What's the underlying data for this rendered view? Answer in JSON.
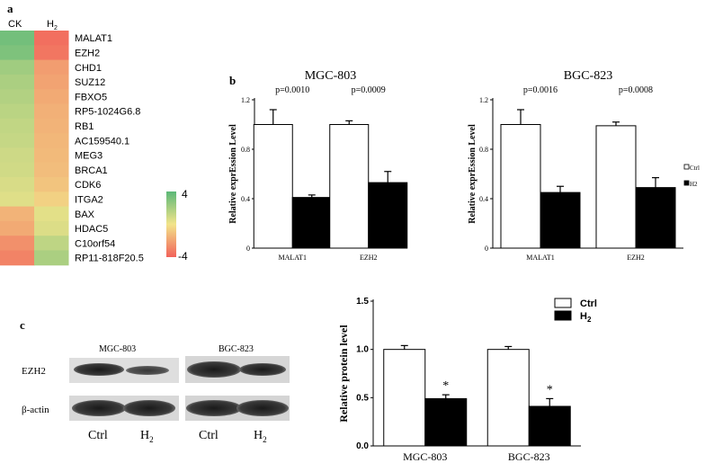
{
  "panels": {
    "a": "a",
    "b": "b",
    "c": "c"
  },
  "heatmap": {
    "col_labels": [
      "CK",
      "H"
    ],
    "col_label_sub": "2",
    "genes": [
      "MALAT1",
      "EZH2",
      "CHD1",
      "SUZ12",
      "FBXO5",
      "RP5-1024G6.8",
      "RB1",
      "AC159540.1",
      "MEG3",
      "BRCA1",
      "CDK6",
      "ITGA2",
      "BAX",
      "HDAC5",
      "C10orf54",
      "RP11-818F20.5"
    ],
    "values": [
      [
        3.4,
        -3.6
      ],
      [
        3.1,
        -3.4
      ],
      [
        2.2,
        -2.2
      ],
      [
        1.9,
        -2.0
      ],
      [
        1.7,
        -1.8
      ],
      [
        1.5,
        -1.6
      ],
      [
        1.3,
        -1.5
      ],
      [
        1.2,
        -1.4
      ],
      [
        1.0,
        -1.3
      ],
      [
        0.9,
        -1.2
      ],
      [
        0.7,
        -1.0
      ],
      [
        0.5,
        -0.6
      ],
      [
        -1.5,
        0.4
      ],
      [
        -1.8,
        0.6
      ],
      [
        -2.6,
        1.4
      ],
      [
        -3.0,
        1.9
      ]
    ],
    "legend_max": "4",
    "legend_min": "-4",
    "colors": {
      "high": "#5cb878",
      "mid": "#f2e48a",
      "low": "#f2625a"
    }
  },
  "chart_data": [
    {
      "type": "bar",
      "title": "MGC-803",
      "categories": [
        "MALAT1",
        "EZH2"
      ],
      "series": [
        {
          "name": "Ctrl",
          "values": [
            1.0,
            1.0
          ],
          "errors": [
            0.12,
            0.03
          ]
        },
        {
          "name": "H2",
          "values": [
            0.41,
            0.53
          ],
          "errors": [
            0.02,
            0.09
          ]
        }
      ],
      "pvalues": [
        "p=0.0010",
        "p=0.0009"
      ],
      "ylabel": "Relative exprEssion Level",
      "yticks": [
        "0",
        "0.4",
        "0.8",
        "1.2"
      ],
      "ylim": [
        0,
        1.2
      ]
    },
    {
      "type": "bar",
      "title": "BGC-823",
      "categories": [
        "MALAT1",
        "EZH2"
      ],
      "series": [
        {
          "name": "Ctrl",
          "values": [
            1.0,
            0.99
          ],
          "errors": [
            0.12,
            0.03
          ]
        },
        {
          "name": "H2",
          "values": [
            0.45,
            0.49
          ],
          "errors": [
            0.05,
            0.08
          ]
        }
      ],
      "pvalues": [
        "p=0.0016",
        "p=0.0008"
      ],
      "ylabel": "Relative exprEssion Level",
      "yticks": [
        "0",
        "0.4",
        "0.8",
        "1.2"
      ],
      "ylim": [
        0,
        1.2
      ],
      "legend": [
        "Ctrl",
        "H2"
      ]
    },
    {
      "type": "bar",
      "categories": [
        "MGC-803",
        "BGC-823"
      ],
      "series": [
        {
          "name": "Ctrl",
          "values": [
            1.0,
            1.0
          ],
          "errors": [
            0.04,
            0.03
          ]
        },
        {
          "name": "H2",
          "values": [
            0.49,
            0.41
          ],
          "errors": [
            0.04,
            0.08
          ]
        }
      ],
      "significance": [
        "*",
        "*"
      ],
      "ylabel": "Relative protein level",
      "yticks": [
        "0.0",
        "0.5",
        "1.0",
        "1.5"
      ],
      "ylim": [
        0,
        1.5
      ],
      "legend": [
        "Ctrl",
        "H"
      ],
      "legend_sub": [
        "",
        "2"
      ]
    }
  ],
  "blot": {
    "group_labels": [
      "MGC-803",
      "BGC-823"
    ],
    "row_labels": [
      "EZH2",
      "β-actin"
    ],
    "lane_labels": [
      "Ctrl",
      "H",
      "Ctrl",
      "H"
    ],
    "lane_sub": [
      "",
      "2",
      "",
      "2"
    ]
  }
}
